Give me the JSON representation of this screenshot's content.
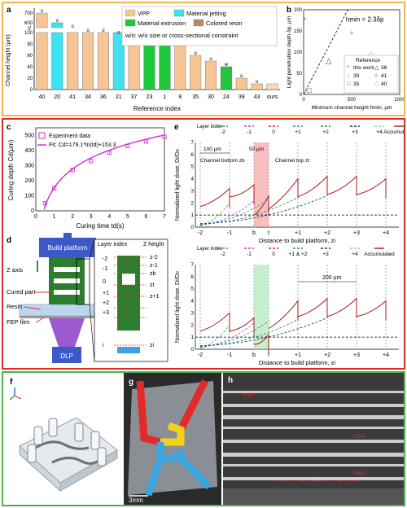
{
  "panels": {
    "a": {
      "label": "a",
      "ylabel": "Channel height (µm)",
      "xlabel": "Reference index",
      "legend": [
        "VPP",
        "Material jetting",
        "Material extrusion",
        "Colored resin",
        "w/o: w/o size or cross-sectional constraint"
      ],
      "colors": {
        "vpp": "#f6c596",
        "jet": "#3fe3f0",
        "ext": "#1fc83a",
        "colored": "#b28c64",
        "ours": "#fcd7b1"
      },
      "upper_ticks": [
        "700",
        "600"
      ],
      "lower_ticks": [
        "0",
        "20",
        "40",
        "60",
        "80",
        "100"
      ]
    },
    "b": {
      "label": "b",
      "ylabel": "Light penetration depth δp, µm",
      "xlabel": "Minimum channel height hmin, µm",
      "annotation": "hmin = 2.3δp",
      "xticks": [
        "0",
        "500",
        "1000"
      ],
      "yticks": [
        "0",
        "50",
        "100",
        "150",
        "200"
      ],
      "legend_title": "Reference",
      "legend": [
        "this work",
        "36",
        "39",
        "41",
        "35",
        "40"
      ]
    },
    "c": {
      "label": "c",
      "ylabel": "Curing depth Cd(µm)",
      "xlabel": "Curing time td(s)",
      "legend": [
        "Experiment data",
        "Fit: Cd=179.1*ln(td)+153.3"
      ],
      "xticks": [
        "0",
        "1",
        "2",
        "3",
        "4",
        "5",
        "6",
        "7"
      ],
      "yticks": [
        "0",
        "100",
        "200",
        "300",
        "400",
        "500"
      ]
    },
    "d": {
      "label": "d",
      "build_platform": "Build platform",
      "z_axis": "Z axis",
      "cured_part": "Cured part",
      "resin": "Resin",
      "fep": "FEP film",
      "dlp": "DLP",
      "layer_index": "Layer index",
      "z_height": "Z height",
      "layers": [
        "-2",
        "-1",
        "0",
        "+1",
        "+2",
        "+3",
        "i"
      ],
      "zs": [
        "z-2",
        "z-1",
        "zb",
        "zt",
        "z+1",
        "zi"
      ]
    },
    "e": {
      "label": "e",
      "ylabel": "Normalized light dose, Di/Dc",
      "xlabel": "Distance to build platform, zi",
      "layer_index": "Layer index",
      "top_legend": [
        "-2",
        "-1",
        "0",
        "+1",
        "+2",
        "+3",
        "+4",
        "Accumulated"
      ],
      "bottom_legend": [
        "-2",
        "-1",
        "0",
        "+1 & +2",
        "+3",
        "+4",
        "Accumulated"
      ],
      "xticks": [
        "-2",
        "-1",
        "b",
        "t",
        "+1",
        "+2",
        "+3",
        "+4"
      ],
      "yticks": [
        "0",
        "1",
        "2",
        "3",
        "4",
        "5",
        "6",
        "7"
      ],
      "dim_100": "100 µm",
      "dim_50": "50 µm",
      "dim_200": "200 µm",
      "channel_bottom": "Channel bottom zb",
      "channel_top": "Channel top zt"
    },
    "f": {
      "label": "f"
    },
    "g": {
      "label": "g",
      "scale": "3mm"
    },
    "h": {
      "label": "h",
      "labels": [
        "60µm",
        "95µm",
        "95µm",
        "Channel height 50µm",
        "Channel height 20µm"
      ]
    }
  },
  "chart_data": [
    {
      "type": "bar",
      "title": "",
      "xlabel": "Reference index",
      "ylabel": "Channel height (µm)",
      "categories": [
        "40",
        "20",
        "41",
        "34",
        "36",
        "21",
        "37",
        "23",
        "1",
        "8",
        "35",
        "30",
        "24",
        "39",
        "43",
        "ours"
      ],
      "values": [
        700,
        600,
        540,
        500,
        500,
        480,
        500,
        80,
        80,
        80,
        60,
        50,
        40,
        20,
        10,
        10
      ],
      "annotations": [
        "o",
        "o",
        "o",
        "o",
        "o",
        "o",
        "o",
        "w",
        "w",
        "w",
        "o",
        "o",
        "w",
        "o",
        "o",
        ""
      ],
      "method": [
        "VPP",
        "Material jetting",
        "VPP",
        "VPP",
        "VPP",
        "Material jetting",
        "VPP",
        "Material extrusion",
        "Material extrusion",
        "VPP",
        "VPP",
        "VPP",
        "Material extrusion",
        "VPP",
        "VPP",
        "VPP"
      ]
    },
    {
      "type": "scatter",
      "xlabel": "Minimum channel height hmin, µm",
      "ylabel": "Light penetration depth δp, µm",
      "xlim": [
        0,
        1000
      ],
      "ylim": [
        0,
        200
      ],
      "series": [
        {
          "name": "this work",
          "x": [
            10
          ],
          "y": [
            175
          ],
          "color": "#e02a2a"
        },
        {
          "name": "36",
          "x": [
            260
          ],
          "y": [
            80
          ],
          "color": "#333333"
        },
        {
          "name": "39",
          "x": [
            30
          ],
          "y": [
            5
          ],
          "color": "#1fc83a"
        },
        {
          "name": "41",
          "x": [
            500
          ],
          "y": [
            145
          ],
          "color": "#c040c0"
        },
        {
          "name": "35",
          "x": [
            60
          ],
          "y": [
            10
          ],
          "color": "#3333cc"
        },
        {
          "name": "40",
          "x": [
            700
          ],
          "y": [
            95
          ],
          "color": "#3fe3c0"
        }
      ]
    },
    {
      "type": "scatter",
      "xlabel": "Curing time td(s)",
      "ylabel": "Curing depth Cd(µm)",
      "xlim": [
        0,
        7
      ],
      "ylim": [
        0,
        550
      ],
      "series": [
        {
          "name": "Experiment data",
          "x": [
            0.5,
            1,
            2,
            3,
            4,
            5,
            6,
            7
          ],
          "y": [
            50,
            150,
            270,
            330,
            385,
            430,
            460,
            490
          ]
        }
      ]
    }
  ]
}
